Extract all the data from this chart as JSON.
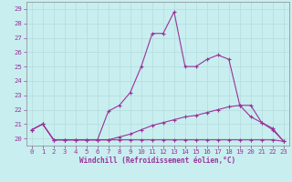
{
  "xlabel": "Windchill (Refroidissement éolien,°C)",
  "bg_color": "#c8eef0",
  "line_color": "#993399",
  "grid_color": "#b8dfe0",
  "xlim": [
    -0.5,
    23.5
  ],
  "ylim": [
    19.5,
    29.5
  ],
  "xticks": [
    0,
    1,
    2,
    3,
    4,
    5,
    6,
    7,
    8,
    9,
    10,
    11,
    12,
    13,
    14,
    15,
    16,
    17,
    18,
    19,
    20,
    21,
    22,
    23
  ],
  "yticks": [
    20,
    21,
    22,
    23,
    24,
    25,
    26,
    27,
    28,
    29
  ],
  "line3": {
    "x": [
      0,
      1,
      2,
      3,
      4,
      5,
      6,
      7,
      8,
      9,
      10,
      11,
      12,
      13,
      14,
      15,
      16,
      17,
      18,
      19,
      20,
      21,
      22,
      23
    ],
    "y": [
      20.6,
      21.0,
      19.9,
      19.9,
      19.9,
      19.9,
      19.9,
      21.9,
      22.3,
      23.2,
      25.0,
      27.3,
      27.3,
      28.8,
      25.0,
      25.0,
      25.5,
      25.8,
      25.5,
      22.3,
      22.3,
      21.1,
      20.6,
      19.8
    ]
  },
  "line2": {
    "x": [
      0,
      1,
      2,
      3,
      4,
      5,
      6,
      7,
      8,
      9,
      10,
      11,
      12,
      13,
      14,
      15,
      16,
      17,
      18,
      19,
      20,
      21,
      22,
      23
    ],
    "y": [
      20.6,
      21.0,
      19.9,
      19.9,
      19.9,
      19.9,
      19.9,
      19.9,
      20.1,
      20.3,
      20.6,
      20.9,
      21.1,
      21.3,
      21.5,
      21.6,
      21.8,
      22.0,
      22.2,
      22.3,
      21.5,
      21.1,
      20.7,
      19.8
    ]
  },
  "line1": {
    "x": [
      0,
      1,
      2,
      3,
      4,
      5,
      6,
      7,
      8,
      9,
      10,
      11,
      12,
      13,
      14,
      15,
      16,
      17,
      18,
      19,
      20,
      21,
      22,
      23
    ],
    "y": [
      20.6,
      21.0,
      19.9,
      19.9,
      19.9,
      19.9,
      19.9,
      19.9,
      19.9,
      19.9,
      19.9,
      19.9,
      19.9,
      19.9,
      19.9,
      19.9,
      19.9,
      19.9,
      19.9,
      19.9,
      19.9,
      19.9,
      19.9,
      19.8
    ]
  }
}
